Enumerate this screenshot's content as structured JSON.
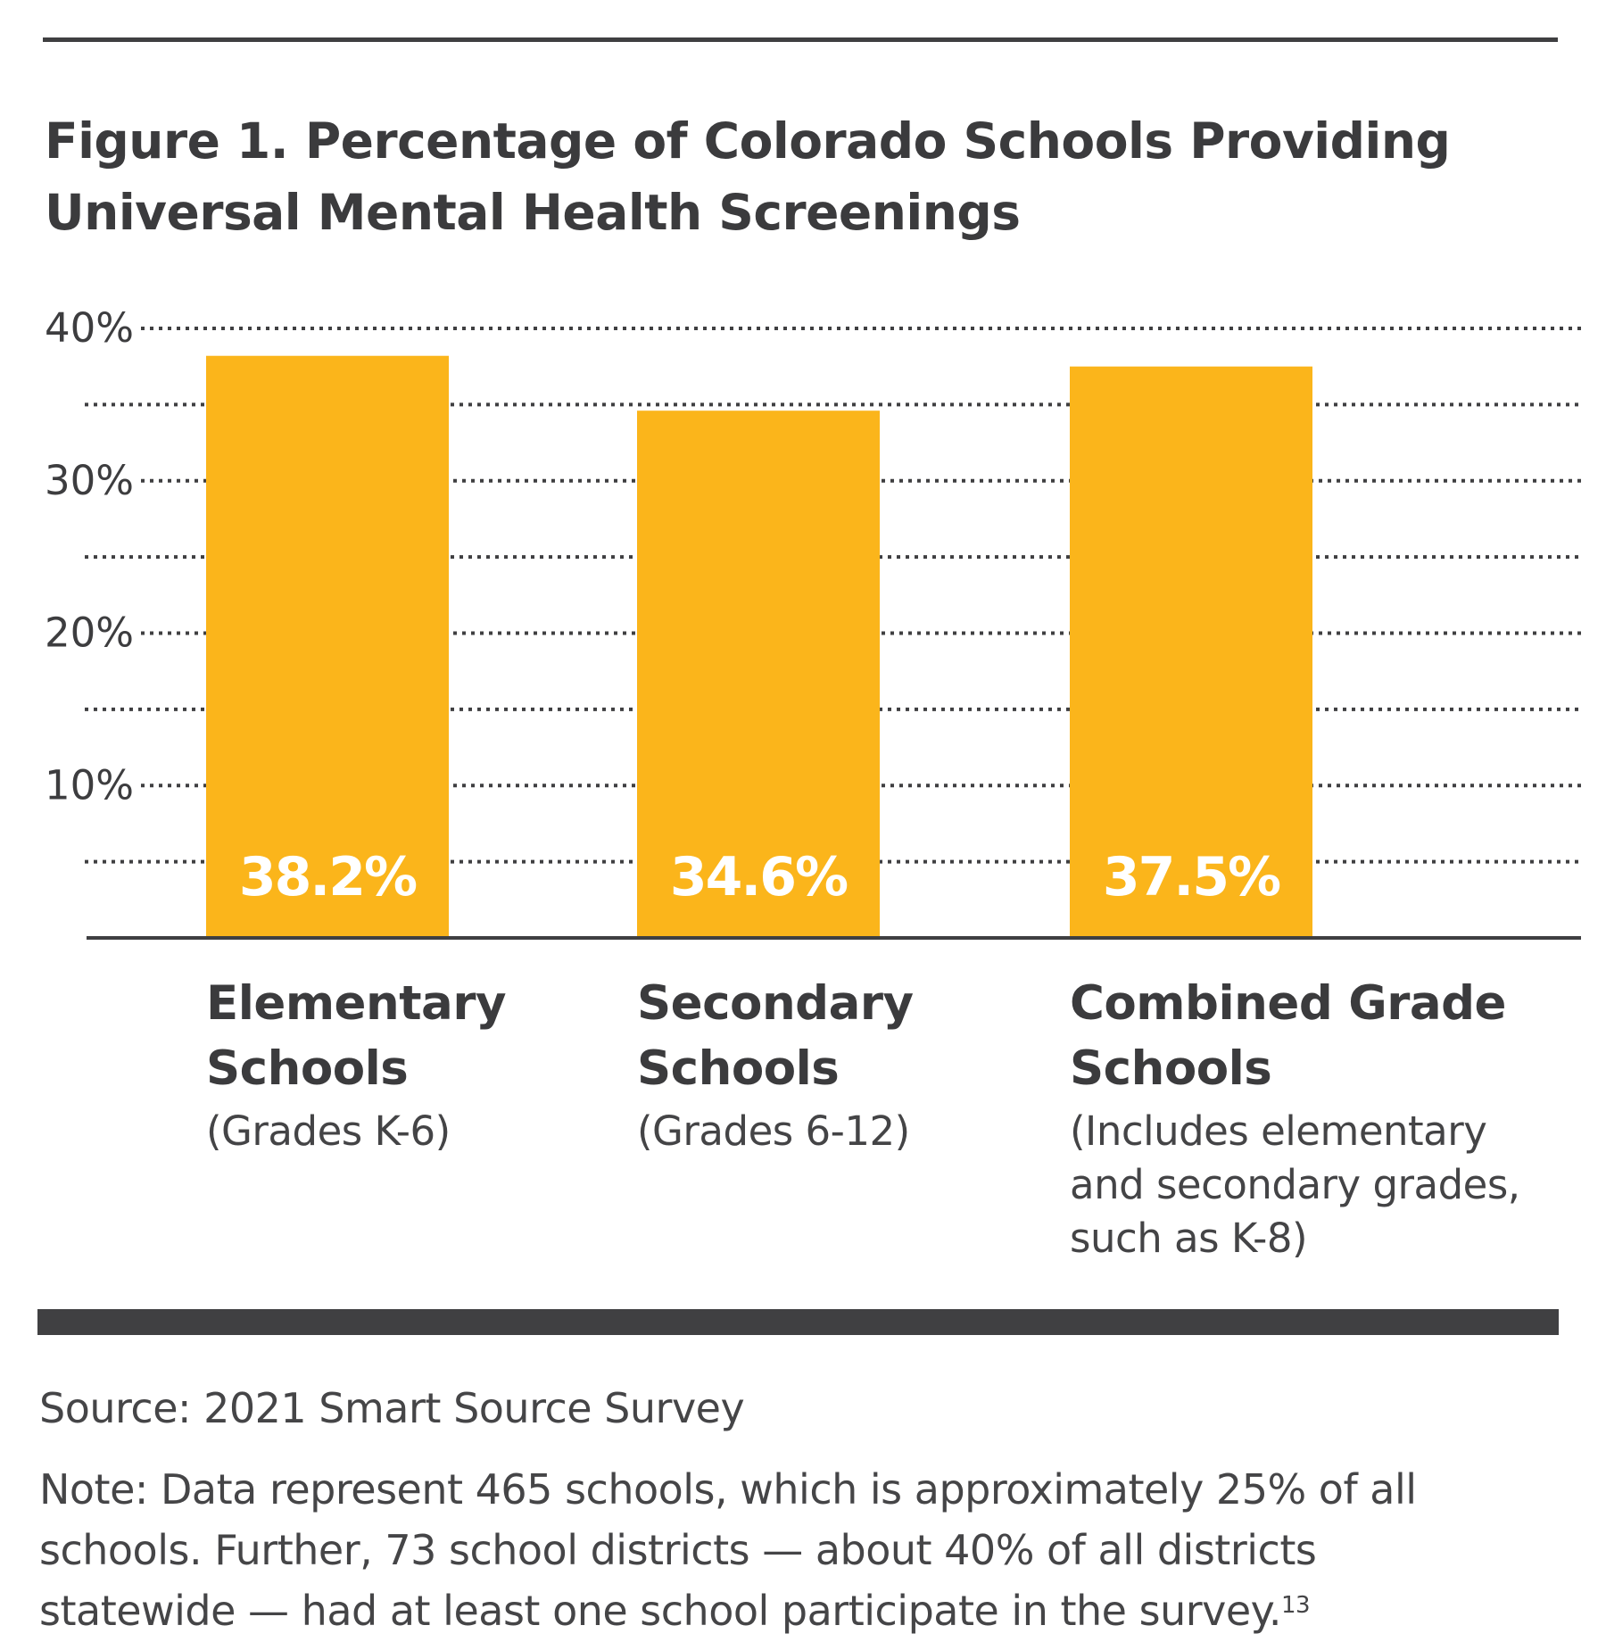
{
  "figure": {
    "title": "Figure 1. Percentage of Colorado Schools Providing Universal Mental Health Screenings",
    "source": "Source: 2021 Smart Source Survey",
    "note": "Note: Data represent 465 schools, which is approximately 25% of all schools. Further, 73 school districts — about 40% of all districts statewide — had at least one school participate in the survey.",
    "note_footnote": "13"
  },
  "colors": {
    "bar": "#FBB51B",
    "text": "#3D3D3F",
    "rule": "#404042",
    "bar_label": "#FFFFFF"
  },
  "categories_detail": [
    {
      "name": "Elementary Schools",
      "sub": "(Grades K-6)"
    },
    {
      "name": "Secondary Schools",
      "sub": "(Grades 6-12)"
    },
    {
      "name": "Combined Grade Schools",
      "sub": "(Includes elementary and secondary grades, such as K-8)"
    }
  ],
  "chart_data": {
    "type": "bar",
    "title": "Figure 1. Percentage of Colorado Schools Providing Universal Mental Health Screenings",
    "categories": [
      "Elementary Schools (Grades K-6)",
      "Secondary Schools (Grades 6-12)",
      "Combined Grade Schools (Includes elementary and secondary grades, such as K-8)"
    ],
    "values": [
      38.2,
      34.6,
      37.5
    ],
    "data_labels": [
      "38.2%",
      "34.6%",
      "37.5%"
    ],
    "xlabel": "",
    "ylabel": "",
    "ylim": [
      0,
      40
    ],
    "yticks": [
      10,
      20,
      30,
      40
    ],
    "ytick_labels": [
      "10%",
      "20%",
      "30%",
      "40%"
    ],
    "minor_gridlines": [
      5,
      15,
      25,
      35
    ],
    "grid": "dotted horizontal",
    "legend": "none"
  }
}
